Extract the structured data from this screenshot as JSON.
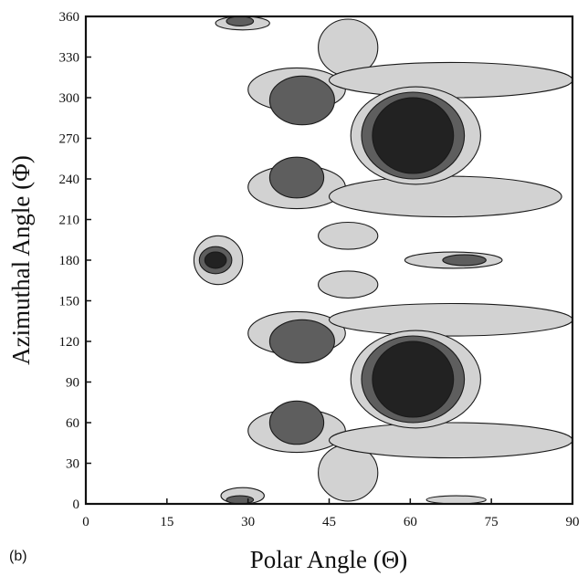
{
  "panel_label": "(b)",
  "chart_data": {
    "type": "heatmap",
    "subtype": "filled-contour",
    "title": "",
    "xlabel": "Polar Angle (Θ)",
    "ylabel": "Azimuthal Angle (Φ)",
    "xlim": [
      0,
      90
    ],
    "ylim": [
      0,
      360
    ],
    "xticks": [
      0,
      15,
      30,
      45,
      60,
      75,
      90
    ],
    "yticks": [
      0,
      30,
      60,
      90,
      120,
      150,
      180,
      210,
      240,
      270,
      300,
      330,
      360
    ],
    "grid": false,
    "legend": "none",
    "levels": [
      {
        "level": 1,
        "color": "#d2d2d2"
      },
      {
        "level": 2,
        "color": "#5e5e5e"
      },
      {
        "level": 3,
        "color": "#222222"
      }
    ],
    "contour_line_color": "#1a1a1a",
    "regions": [
      {
        "level": 1,
        "theta": [
          24,
          34
        ],
        "phi": [
          350,
          360
        ]
      },
      {
        "level": 2,
        "theta": [
          26,
          31
        ],
        "phi": [
          353,
          360
        ]
      },
      {
        "level": 1,
        "theta": [
          25,
          33
        ],
        "phi": [
          0,
          12
        ]
      },
      {
        "level": 2,
        "theta": [
          26,
          31
        ],
        "phi": [
          0,
          6
        ]
      },
      {
        "level": 1,
        "theta": [
          63,
          74
        ],
        "phi": [
          0,
          6
        ]
      },
      {
        "level": 1,
        "theta": [
          43,
          54
        ],
        "phi": [
          316,
          358
        ]
      },
      {
        "level": 1,
        "theta": [
          43,
          54
        ],
        "phi": [
          2,
          44
        ]
      },
      {
        "level": 1,
        "theta": [
          30,
          48
        ],
        "phi": [
          290,
          322
        ]
      },
      {
        "level": 1,
        "theta": [
          45,
          90
        ],
        "phi": [
          300,
          326
        ]
      },
      {
        "level": 1,
        "theta": [
          30,
          48
        ],
        "phi": [
          218,
          250
        ]
      },
      {
        "level": 1,
        "theta": [
          45,
          88
        ],
        "phi": [
          212,
          242
        ]
      },
      {
        "level": 2,
        "theta": [
          34,
          46
        ],
        "phi": [
          280,
          316
        ]
      },
      {
        "level": 2,
        "theta": [
          34,
          44
        ],
        "phi": [
          226,
          256
        ]
      },
      {
        "level": 1,
        "theta": [
          49,
          73
        ],
        "phi": [
          236,
          308
        ]
      },
      {
        "level": 2,
        "theta": [
          51,
          70
        ],
        "phi": [
          240,
          304
        ]
      },
      {
        "level": 3,
        "theta": [
          53,
          68
        ],
        "phi": [
          244,
          300
        ]
      },
      {
        "level": 1,
        "theta": [
          43,
          54
        ],
        "phi": [
          188,
          208
        ]
      },
      {
        "level": 1,
        "theta": [
          43,
          54
        ],
        "phi": [
          152,
          172
        ]
      },
      {
        "level": 1,
        "theta": [
          20,
          29
        ],
        "phi": [
          162,
          198
        ]
      },
      {
        "level": 2,
        "theta": [
          21,
          27
        ],
        "phi": [
          170,
          190
        ]
      },
      {
        "level": 3,
        "theta": [
          22,
          26
        ],
        "phi": [
          174,
          186
        ]
      },
      {
        "level": 1,
        "theta": [
          59,
          77
        ],
        "phi": [
          174,
          186
        ]
      },
      {
        "level": 2,
        "theta": [
          66,
          74
        ],
        "phi": [
          176,
          184
        ]
      },
      {
        "level": 1,
        "theta": [
          30,
          48
        ],
        "phi": [
          110,
          142
        ]
      },
      {
        "level": 1,
        "theta": [
          45,
          90
        ],
        "phi": [
          124,
          148
        ]
      },
      {
        "level": 1,
        "theta": [
          30,
          48
        ],
        "phi": [
          38,
          70
        ]
      },
      {
        "level": 1,
        "theta": [
          45,
          90
        ],
        "phi": [
          34,
          60
        ]
      },
      {
        "level": 2,
        "theta": [
          34,
          46
        ],
        "phi": [
          104,
          136
        ]
      },
      {
        "level": 2,
        "theta": [
          34,
          44
        ],
        "phi": [
          44,
          76
        ]
      },
      {
        "level": 1,
        "theta": [
          49,
          73
        ],
        "phi": [
          56,
          128
        ]
      },
      {
        "level": 2,
        "theta": [
          51,
          70
        ],
        "phi": [
          60,
          124
        ]
      },
      {
        "level": 3,
        "theta": [
          53,
          68
        ],
        "phi": [
          64,
          120
        ]
      }
    ]
  }
}
